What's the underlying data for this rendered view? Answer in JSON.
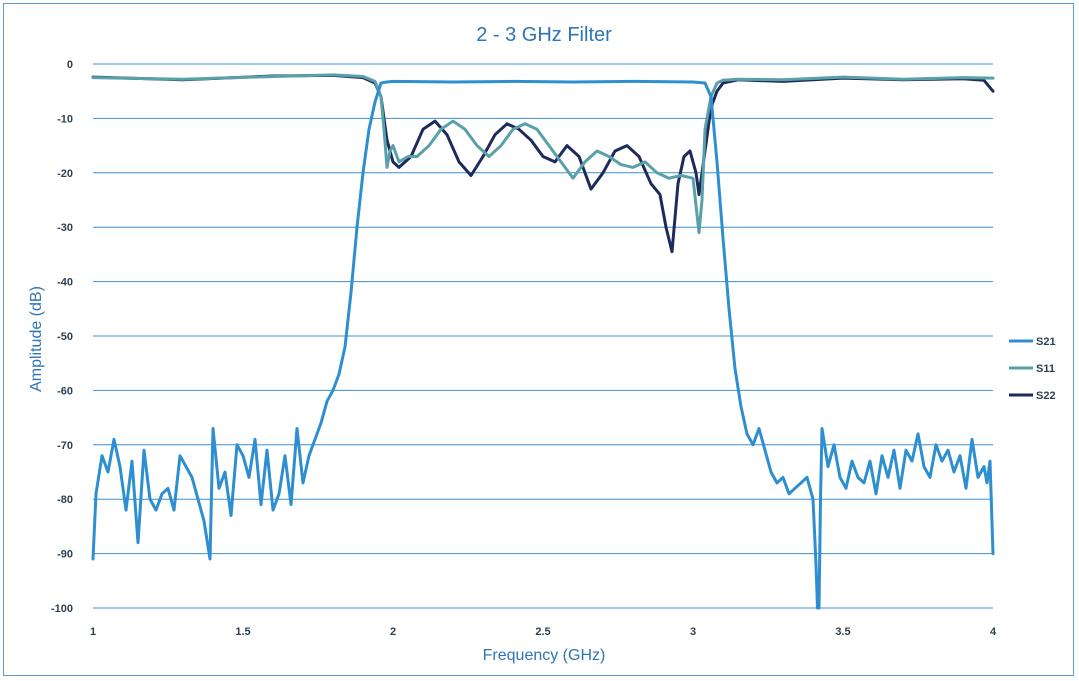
{
  "chart_data": {
    "type": "line",
    "title": "2 - 3 GHz Filter",
    "xlabel": "Frequency (GHz)",
    "ylabel": "Amplitude (dB)",
    "xlim": [
      1,
      4
    ],
    "ylim": [
      -100,
      0
    ],
    "x_ticks": [
      "1",
      "1.5",
      "2",
      "2.5",
      "3",
      "3.5",
      "4"
    ],
    "y_ticks": [
      "0",
      "-10",
      "-20",
      "-30",
      "-40",
      "-50",
      "-60",
      "-70",
      "-80",
      "-90",
      "-100"
    ],
    "grid": true,
    "legend_position": "right",
    "series": [
      {
        "name": "S21",
        "color": "#2e8fd0",
        "x": [
          1.0,
          1.01,
          1.03,
          1.05,
          1.07,
          1.09,
          1.11,
          1.13,
          1.15,
          1.17,
          1.19,
          1.21,
          1.23,
          1.25,
          1.27,
          1.29,
          1.31,
          1.33,
          1.35,
          1.37,
          1.39,
          1.4,
          1.42,
          1.44,
          1.46,
          1.48,
          1.5,
          1.52,
          1.54,
          1.56,
          1.58,
          1.6,
          1.62,
          1.64,
          1.66,
          1.68,
          1.7,
          1.72,
          1.74,
          1.76,
          1.78,
          1.8,
          1.82,
          1.84,
          1.86,
          1.88,
          1.9,
          1.92,
          1.94,
          1.96,
          1.98,
          2.0,
          2.2,
          2.4,
          2.6,
          2.8,
          3.0,
          3.04,
          3.06,
          3.08,
          3.1,
          3.12,
          3.14,
          3.16,
          3.18,
          3.2,
          3.22,
          3.24,
          3.26,
          3.28,
          3.3,
          3.32,
          3.34,
          3.36,
          3.38,
          3.4,
          3.41,
          3.415,
          3.42,
          3.425,
          3.43,
          3.45,
          3.47,
          3.49,
          3.51,
          3.53,
          3.55,
          3.57,
          3.59,
          3.61,
          3.63,
          3.65,
          3.67,
          3.69,
          3.71,
          3.73,
          3.75,
          3.77,
          3.79,
          3.81,
          3.83,
          3.85,
          3.87,
          3.89,
          3.91,
          3.93,
          3.95,
          3.97,
          3.98,
          3.99,
          4.0
        ],
        "values": [
          -91,
          -79,
          -72,
          -75,
          -69,
          -74,
          -82,
          -73,
          -88,
          -71,
          -80,
          -82,
          -79,
          -78,
          -82,
          -72,
          -74,
          -76,
          -80,
          -84,
          -91,
          -67,
          -78,
          -75,
          -83,
          -70,
          -72,
          -76,
          -69,
          -81,
          -71,
          -82,
          -79,
          -72,
          -81,
          -67,
          -77,
          -72,
          -69,
          -66,
          -62,
          -60,
          -57,
          -52,
          -42,
          -30,
          -20,
          -12,
          -7,
          -3.5,
          -3.3,
          -3.2,
          -3.3,
          -3.2,
          -3.3,
          -3.2,
          -3.3,
          -3.5,
          -6,
          -18,
          -32,
          -45,
          -56,
          -63,
          -68,
          -70,
          -67,
          -71,
          -75,
          -77,
          -76,
          -79,
          -78,
          -77,
          -76,
          -80,
          -92,
          -100,
          -100,
          -80,
          -67,
          -74,
          -70,
          -76,
          -78,
          -73,
          -76,
          -77,
          -73,
          -79,
          -72,
          -76,
          -71,
          -78,
          -71,
          -73,
          -68,
          -74,
          -76,
          -70,
          -73,
          -71,
          -75,
          -72,
          -78,
          -69,
          -76,
          -74,
          -77,
          -73,
          -90
        ]
      },
      {
        "name": "S11",
        "color": "#5aa0a8",
        "x": [
          1.0,
          1.3,
          1.6,
          1.8,
          1.9,
          1.94,
          1.96,
          1.97,
          1.98,
          1.99,
          2.0,
          2.02,
          2.05,
          2.08,
          2.12,
          2.16,
          2.2,
          2.24,
          2.28,
          2.32,
          2.36,
          2.4,
          2.44,
          2.48,
          2.52,
          2.56,
          2.6,
          2.64,
          2.68,
          2.72,
          2.76,
          2.8,
          2.84,
          2.88,
          2.92,
          2.96,
          3.0,
          3.02,
          3.03,
          3.04,
          3.06,
          3.08,
          3.1,
          3.15,
          3.3,
          3.5,
          3.7,
          3.9,
          4.0
        ],
        "values": [
          -2.5,
          -2.8,
          -2.3,
          -2.0,
          -2.3,
          -3.2,
          -6,
          -12,
          -19,
          -16,
          -15,
          -18,
          -17,
          -17,
          -15,
          -12,
          -10.5,
          -12,
          -15,
          -17,
          -15,
          -12,
          -11,
          -12,
          -15,
          -18,
          -21,
          -18,
          -16,
          -17,
          -18.5,
          -19,
          -18,
          -20,
          -21,
          -20.5,
          -21,
          -31,
          -25,
          -12,
          -6,
          -3.5,
          -3.0,
          -2.8,
          -2.9,
          -2.4,
          -2.8,
          -2.5,
          -2.6
        ]
      },
      {
        "name": "S22",
        "color": "#1f2a5c",
        "x": [
          1.0,
          1.3,
          1.6,
          1.8,
          1.9,
          1.94,
          1.96,
          1.97,
          1.98,
          2.0,
          2.02,
          2.06,
          2.1,
          2.14,
          2.18,
          2.22,
          2.26,
          2.3,
          2.34,
          2.38,
          2.42,
          2.46,
          2.5,
          2.54,
          2.58,
          2.62,
          2.66,
          2.7,
          2.74,
          2.78,
          2.82,
          2.86,
          2.89,
          2.91,
          2.93,
          2.95,
          2.97,
          2.99,
          3.01,
          3.02,
          3.04,
          3.06,
          3.08,
          3.1,
          3.15,
          3.3,
          3.5,
          3.7,
          3.9,
          3.97,
          4.0
        ],
        "values": [
          -2.4,
          -2.9,
          -2.2,
          -2.1,
          -2.5,
          -3.5,
          -6,
          -10,
          -14,
          -18,
          -19,
          -17,
          -12,
          -10.5,
          -13,
          -18,
          -20.5,
          -17,
          -13,
          -11,
          -12,
          -14,
          -17,
          -18,
          -15,
          -17,
          -23,
          -20,
          -16,
          -15,
          -17,
          -22,
          -24,
          -30,
          -34.5,
          -22,
          -17,
          -16,
          -20,
          -24,
          -16,
          -8,
          -5,
          -3.5,
          -2.9,
          -3.2,
          -2.6,
          -2.9,
          -2.7,
          -3.0,
          -5
        ]
      }
    ]
  }
}
